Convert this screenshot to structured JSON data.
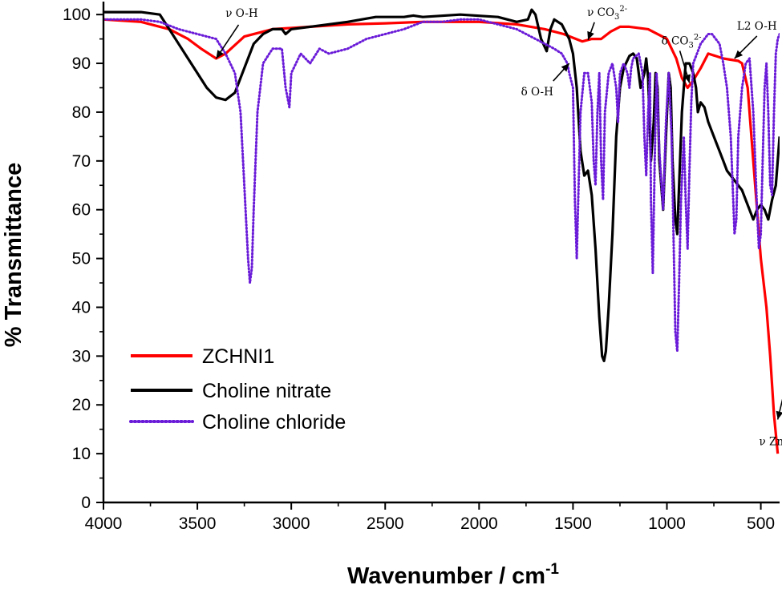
{
  "chart_data": {
    "type": "line",
    "xlabel": "Wavenumber / cm",
    "xlabel_sup": "-1",
    "ylabel": "% Transmittance",
    "xlim": [
      4000,
      400
    ],
    "ylim": [
      0,
      102
    ],
    "x_ticks": [
      4000,
      3500,
      3000,
      2500,
      2000,
      1500,
      1000,
      500
    ],
    "y_ticks": [
      0,
      10,
      20,
      30,
      40,
      50,
      60,
      70,
      80,
      90,
      100
    ],
    "grid": false,
    "legend_position": "lower-left",
    "series": [
      {
        "name": "ZCHNI1",
        "color": "#ff0000",
        "style": "solid",
        "points": [
          [
            4000,
            99
          ],
          [
            3800,
            98.5
          ],
          [
            3650,
            97
          ],
          [
            3550,
            95
          ],
          [
            3480,
            93
          ],
          [
            3400,
            91
          ],
          [
            3350,
            92
          ],
          [
            3250,
            95.5
          ],
          [
            3100,
            97
          ],
          [
            2900,
            97.5
          ],
          [
            2700,
            98
          ],
          [
            2500,
            98.2
          ],
          [
            2300,
            98.5
          ],
          [
            2200,
            98.5
          ],
          [
            2000,
            98.5
          ],
          [
            1800,
            98
          ],
          [
            1650,
            97
          ],
          [
            1550,
            96
          ],
          [
            1450,
            94.5
          ],
          [
            1400,
            95
          ],
          [
            1350,
            95
          ],
          [
            1300,
            96.5
          ],
          [
            1250,
            97.5
          ],
          [
            1200,
            97.5
          ],
          [
            1100,
            97
          ],
          [
            1000,
            95
          ],
          [
            950,
            91
          ],
          [
            920,
            87
          ],
          [
            890,
            85
          ],
          [
            860,
            86.5
          ],
          [
            820,
            89
          ],
          [
            780,
            92
          ],
          [
            740,
            91.5
          ],
          [
            700,
            91
          ],
          [
            620,
            90.5
          ],
          [
            600,
            90
          ],
          [
            570,
            85
          ],
          [
            540,
            70
          ],
          [
            500,
            50
          ],
          [
            470,
            40
          ],
          [
            450,
            30
          ],
          [
            430,
            18
          ],
          [
            410,
            10
          ]
        ]
      },
      {
        "name": "Choline nitrate",
        "color": "#000000",
        "style": "solid",
        "points": [
          [
            4000,
            100.5
          ],
          [
            3800,
            100.5
          ],
          [
            3700,
            100
          ],
          [
            3650,
            97
          ],
          [
            3600,
            94
          ],
          [
            3550,
            91
          ],
          [
            3500,
            88
          ],
          [
            3450,
            85
          ],
          [
            3400,
            83
          ],
          [
            3350,
            82.5
          ],
          [
            3300,
            84
          ],
          [
            3250,
            89
          ],
          [
            3200,
            94
          ],
          [
            3150,
            96
          ],
          [
            3100,
            97
          ],
          [
            3050,
            97
          ],
          [
            3030,
            96
          ],
          [
            3000,
            97
          ],
          [
            2900,
            97.5
          ],
          [
            2700,
            98.5
          ],
          [
            2550,
            99.5
          ],
          [
            2400,
            99.5
          ],
          [
            2350,
            99.8
          ],
          [
            2300,
            99.5
          ],
          [
            2100,
            100
          ],
          [
            1900,
            99.5
          ],
          [
            1800,
            98.5
          ],
          [
            1740,
            99
          ],
          [
            1720,
            101
          ],
          [
            1700,
            100
          ],
          [
            1670,
            95
          ],
          [
            1640,
            92.5
          ],
          [
            1620,
            97
          ],
          [
            1600,
            99
          ],
          [
            1560,
            98
          ],
          [
            1520,
            95
          ],
          [
            1500,
            92
          ],
          [
            1480,
            85
          ],
          [
            1460,
            72
          ],
          [
            1440,
            67
          ],
          [
            1420,
            68
          ],
          [
            1400,
            63
          ],
          [
            1380,
            52
          ],
          [
            1360,
            38
          ],
          [
            1345,
            30
          ],
          [
            1335,
            29
          ],
          [
            1325,
            31
          ],
          [
            1310,
            40
          ],
          [
            1290,
            55
          ],
          [
            1270,
            75
          ],
          [
            1250,
            85
          ],
          [
            1230,
            89
          ],
          [
            1200,
            91.5
          ],
          [
            1180,
            92
          ],
          [
            1160,
            91
          ],
          [
            1140,
            85
          ],
          [
            1120,
            88
          ],
          [
            1110,
            91
          ],
          [
            1100,
            87
          ],
          [
            1085,
            70
          ],
          [
            1070,
            78
          ],
          [
            1060,
            88
          ],
          [
            1050,
            85
          ],
          [
            1040,
            70
          ],
          [
            1020,
            60
          ],
          [
            1005,
            75
          ],
          [
            990,
            88
          ],
          [
            980,
            85
          ],
          [
            970,
            70
          ],
          [
            955,
            58
          ],
          [
            945,
            55
          ],
          [
            935,
            65
          ],
          [
            920,
            80
          ],
          [
            900,
            90
          ],
          [
            880,
            90
          ],
          [
            860,
            88
          ],
          [
            845,
            85
          ],
          [
            835,
            80
          ],
          [
            820,
            82
          ],
          [
            800,
            81
          ],
          [
            780,
            78
          ],
          [
            760,
            76
          ],
          [
            740,
            74
          ],
          [
            720,
            72
          ],
          [
            700,
            70
          ],
          [
            680,
            68
          ],
          [
            660,
            67
          ],
          [
            640,
            66
          ],
          [
            620,
            65
          ],
          [
            600,
            64
          ],
          [
            580,
            62
          ],
          [
            560,
            60
          ],
          [
            540,
            58
          ],
          [
            520,
            60
          ],
          [
            500,
            61
          ],
          [
            480,
            60
          ],
          [
            460,
            58
          ],
          [
            440,
            62
          ],
          [
            420,
            65
          ],
          [
            400,
            75
          ]
        ]
      },
      {
        "name": "Choline chloride",
        "color": "#6a1bd8",
        "style": "dotted",
        "points": [
          [
            4000,
            99
          ],
          [
            3800,
            99
          ],
          [
            3700,
            98.5
          ],
          [
            3600,
            97
          ],
          [
            3500,
            96
          ],
          [
            3400,
            95
          ],
          [
            3350,
            92
          ],
          [
            3300,
            88
          ],
          [
            3270,
            80
          ],
          [
            3250,
            65
          ],
          [
            3230,
            50
          ],
          [
            3220,
            45
          ],
          [
            3210,
            48
          ],
          [
            3200,
            60
          ],
          [
            3180,
            80
          ],
          [
            3150,
            90
          ],
          [
            3100,
            93
          ],
          [
            3050,
            93
          ],
          [
            3030,
            85
          ],
          [
            3010,
            81
          ],
          [
            3000,
            88
          ],
          [
            2950,
            92
          ],
          [
            2900,
            90
          ],
          [
            2850,
            93
          ],
          [
            2800,
            92
          ],
          [
            2700,
            93
          ],
          [
            2600,
            95
          ],
          [
            2500,
            96
          ],
          [
            2400,
            97
          ],
          [
            2300,
            98.5
          ],
          [
            2200,
            98.5
          ],
          [
            2100,
            99
          ],
          [
            2000,
            99
          ],
          [
            1900,
            98
          ],
          [
            1800,
            97
          ],
          [
            1750,
            96
          ],
          [
            1700,
            95
          ],
          [
            1650,
            94
          ],
          [
            1600,
            93
          ],
          [
            1560,
            92
          ],
          [
            1530,
            90
          ],
          [
            1520,
            88
          ],
          [
            1500,
            85
          ],
          [
            1490,
            62
          ],
          [
            1480,
            50
          ],
          [
            1470,
            65
          ],
          [
            1460,
            80
          ],
          [
            1440,
            88
          ],
          [
            1420,
            88
          ],
          [
            1400,
            82
          ],
          [
            1390,
            70
          ],
          [
            1380,
            65
          ],
          [
            1370,
            80
          ],
          [
            1360,
            88
          ],
          [
            1350,
            70
          ],
          [
            1340,
            62
          ],
          [
            1330,
            80
          ],
          [
            1310,
            88
          ],
          [
            1290,
            90
          ],
          [
            1270,
            85
          ],
          [
            1260,
            78
          ],
          [
            1250,
            88
          ],
          [
            1230,
            90
          ],
          [
            1210,
            88
          ],
          [
            1200,
            85
          ],
          [
            1190,
            89
          ],
          [
            1180,
            91
          ],
          [
            1150,
            92
          ],
          [
            1130,
            88
          ],
          [
            1120,
            75
          ],
          [
            1110,
            67
          ],
          [
            1100,
            80
          ],
          [
            1090,
            88
          ],
          [
            1085,
            62
          ],
          [
            1075,
            47
          ],
          [
            1065,
            70
          ],
          [
            1055,
            88
          ],
          [
            1040,
            72
          ],
          [
            1020,
            60
          ],
          [
            1005,
            78
          ],
          [
            990,
            88
          ],
          [
            975,
            75
          ],
          [
            965,
            55
          ],
          [
            955,
            35
          ],
          [
            945,
            31
          ],
          [
            935,
            45
          ],
          [
            925,
            62
          ],
          [
            910,
            75
          ],
          [
            900,
            62
          ],
          [
            890,
            52
          ],
          [
            880,
            68
          ],
          [
            870,
            82
          ],
          [
            860,
            90
          ],
          [
            840,
            92
          ],
          [
            820,
            94
          ],
          [
            800,
            95
          ],
          [
            780,
            96
          ],
          [
            760,
            96
          ],
          [
            740,
            95
          ],
          [
            720,
            94
          ],
          [
            700,
            90
          ],
          [
            680,
            85
          ],
          [
            660,
            75
          ],
          [
            650,
            65
          ],
          [
            640,
            55
          ],
          [
            630,
            58
          ],
          [
            620,
            75
          ],
          [
            600,
            85
          ],
          [
            580,
            90
          ],
          [
            560,
            91
          ],
          [
            540,
            80
          ],
          [
            530,
            70
          ],
          [
            520,
            60
          ],
          [
            510,
            52
          ],
          [
            500,
            55
          ],
          [
            490,
            70
          ],
          [
            480,
            85
          ],
          [
            470,
            90
          ],
          [
            460,
            80
          ],
          [
            450,
            65
          ],
          [
            440,
            63
          ],
          [
            430,
            80
          ],
          [
            420,
            92
          ],
          [
            410,
            95
          ],
          [
            400,
            96
          ]
        ]
      }
    ],
    "annotations": [
      {
        "text": "ν O-H",
        "x": 3400,
        "y": 91
      },
      {
        "text": "δ O-H",
        "x": 1520,
        "y": 90
      },
      {
        "text": "ν CO",
        "sub": "3",
        "sup": "2-",
        "x": 1420,
        "y": 94.8
      },
      {
        "text": "δ CO",
        "sub": "3",
        "sup": "2-",
        "x": 880,
        "y": 86
      },
      {
        "text": "L2 O-H",
        "x": 640,
        "y": 91
      },
      {
        "text": "ν Zn-O",
        "x": 410,
        "y": 17
      }
    ]
  }
}
